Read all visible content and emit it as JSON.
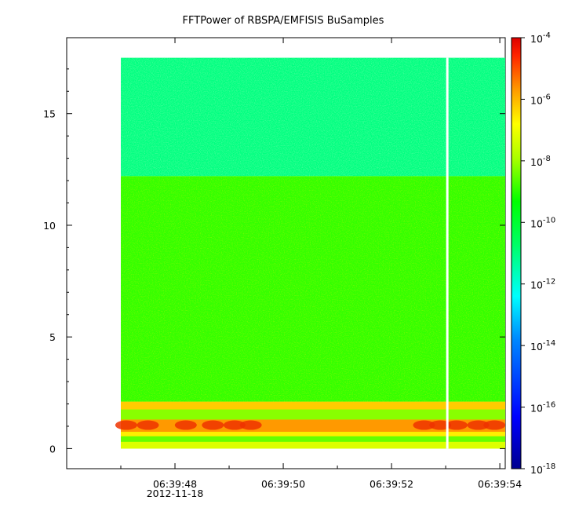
{
  "chart_data": {
    "type": "heatmap",
    "title": "FFTPower of RBSPA/EMFISIS  BuSamples",
    "xlabel": "",
    "ylabel": "",
    "x_axis": {
      "type": "time",
      "range": [
        "06:39:46.0",
        "06:39:54.1"
      ],
      "ticks": [
        {
          "value_s": 48,
          "label": "06:39:48",
          "sublabel": "2012-11-18"
        },
        {
          "value_s": 50,
          "label": "06:39:50",
          "sublabel": ""
        },
        {
          "value_s": 52,
          "label": "06:39:52",
          "sublabel": ""
        },
        {
          "value_s": 54,
          "label": "06:39:54",
          "sublabel": ""
        }
      ],
      "minor_ticks_s": [
        47,
        49,
        51,
        53
      ]
    },
    "y_axis": {
      "range": [
        -0.9,
        18.4
      ],
      "ticks": [
        0,
        5,
        10,
        15
      ],
      "tick_labels": [
        "0",
        "5",
        "10",
        "15"
      ]
    },
    "data_extent": {
      "x_start_s": 47.0,
      "x_end_s": 54.1,
      "y_min": 0,
      "y_max": 17.5,
      "gap_at_s": 53.03
    },
    "power_regions": [
      {
        "y_from": 12.2,
        "y_to": 17.5,
        "level": "~1e-13"
      },
      {
        "y_from": 2.1,
        "y_to": 12.2,
        "level": "~1e-11"
      },
      {
        "y_from": 0,
        "y_to": 2.1,
        "level": "~1e-8 to 1e-5 (bands)"
      }
    ],
    "colorbar": {
      "scale": "log",
      "range": [
        1e-18,
        0.0001
      ],
      "tick_labels": [
        {
          "base": "10",
          "exp": "-4"
        },
        {
          "base": "10",
          "exp": "-6"
        },
        {
          "base": "10",
          "exp": "-8"
        },
        {
          "base": "10",
          "exp": "-10"
        },
        {
          "base": "10",
          "exp": "-12"
        },
        {
          "base": "10",
          "exp": "-14"
        },
        {
          "base": "10",
          "exp": "-16"
        },
        {
          "base": "10",
          "exp": "-18"
        }
      ],
      "colors": [
        "#00008f",
        "#0000ff",
        "#00ffff",
        "#00ff00",
        "#ffff00",
        "#ff8800",
        "#ff0000",
        "#cc0000"
      ]
    }
  }
}
